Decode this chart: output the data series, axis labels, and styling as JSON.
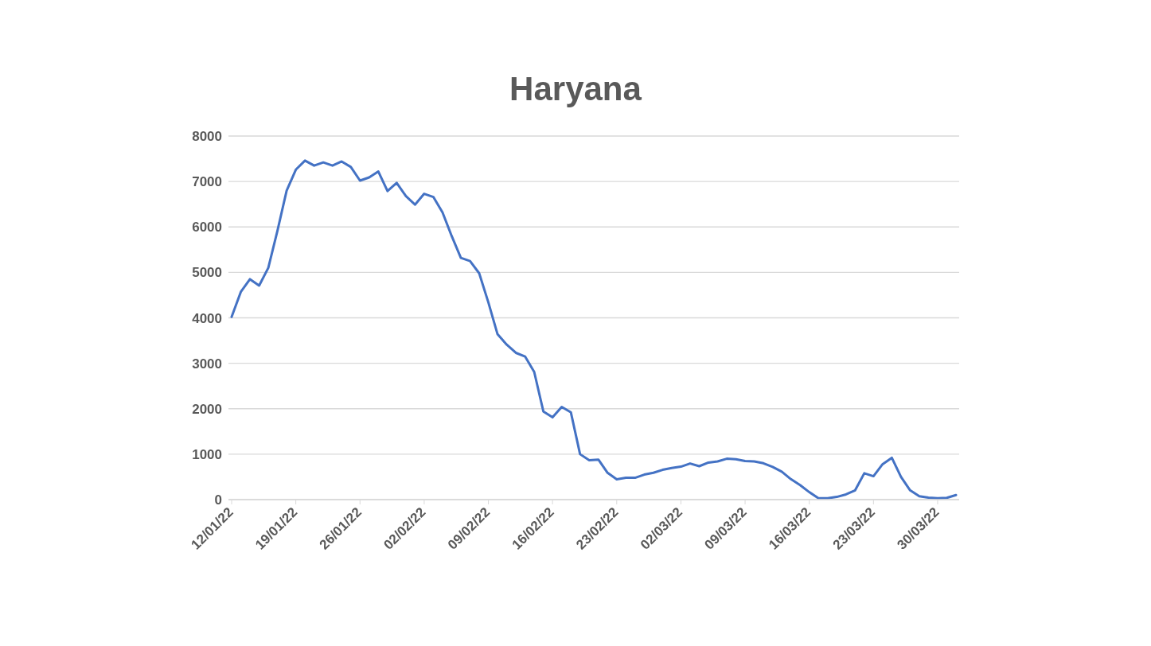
{
  "chart_data": {
    "type": "line",
    "title": "Haryana",
    "categories": [
      "12/01/22",
      null,
      null,
      null,
      null,
      null,
      null,
      "19/01/22",
      null,
      null,
      null,
      null,
      null,
      null,
      "26/01/22",
      null,
      null,
      null,
      null,
      null,
      null,
      "02/02/22",
      null,
      null,
      null,
      null,
      null,
      null,
      "09/02/22",
      null,
      null,
      null,
      null,
      null,
      null,
      "16/02/22",
      null,
      null,
      null,
      null,
      null,
      null,
      "23/02/22",
      null,
      null,
      null,
      null,
      null,
      null,
      "02/03/22",
      null,
      null,
      null,
      null,
      null,
      null,
      "09/03/22",
      null,
      null,
      null,
      null,
      null,
      null,
      "16/03/22",
      null,
      null,
      null,
      null,
      null,
      null,
      "23/03/22",
      null,
      null,
      null,
      null,
      null,
      null,
      "30/03/22",
      null,
      null
    ],
    "series": [
      {
        "color": "#4472c4",
        "values": [
          4020,
          4570,
          4850,
          4710,
          5100,
          5920,
          6800,
          7260,
          7460,
          7350,
          7420,
          7350,
          7440,
          7320,
          7020,
          7090,
          7220,
          6790,
          6970,
          6680,
          6490,
          6730,
          6660,
          6320,
          5800,
          5320,
          5250,
          4980,
          4340,
          3640,
          3410,
          3230,
          3150,
          2810,
          1940,
          1810,
          2040,
          1920,
          1000,
          865,
          880,
          590,
          445,
          480,
          480,
          550,
          590,
          655,
          695,
          725,
          795,
          735,
          815,
          840,
          900,
          890,
          850,
          840,
          800,
          720,
          615,
          450,
          320,
          165,
          30,
          30,
          60,
          115,
          205,
          580,
          515,
          780,
          920,
          500,
          205,
          75,
          45,
          30,
          40,
          100
        ]
      }
    ],
    "ylim": [
      0,
      8000
    ],
    "yticks": [
      0,
      1000,
      2000,
      3000,
      4000,
      5000,
      6000,
      7000,
      8000
    ],
    "grid": "y"
  }
}
